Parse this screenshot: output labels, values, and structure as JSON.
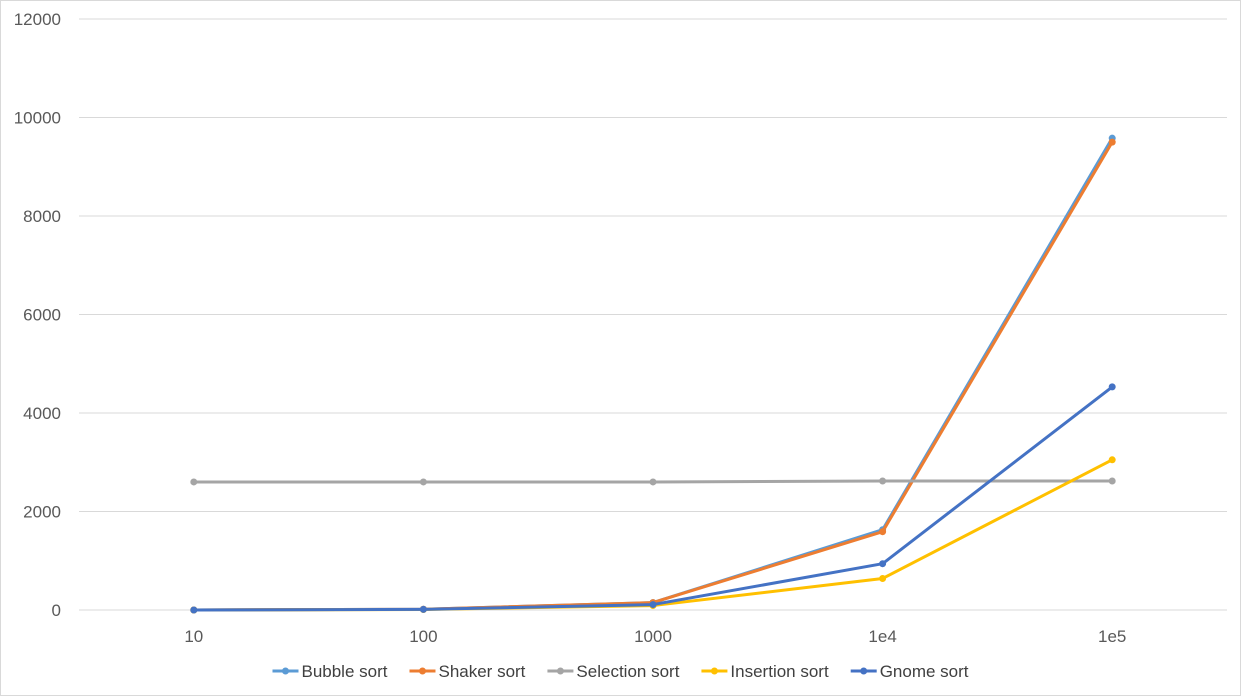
{
  "chart_data": {
    "type": "line",
    "categories": [
      "10",
      "100",
      "1000",
      "1e4",
      "1e5"
    ],
    "ylim": [
      0,
      12000
    ],
    "yticks": [
      0,
      2000,
      4000,
      6000,
      8000,
      10000,
      12000
    ],
    "grid": true,
    "legend_position": "bottom",
    "title": "",
    "xlabel": "",
    "ylabel": "",
    "series": [
      {
        "name": "Bubble sort",
        "color": "#5B9BD5",
        "values": [
          0,
          15,
          150,
          1630,
          9580
        ]
      },
      {
        "name": "Shaker sort",
        "color": "#ED7D31",
        "values": [
          0,
          15,
          150,
          1590,
          9500
        ]
      },
      {
        "name": "Selection sort",
        "color": "#A5A5A5",
        "values": [
          2600,
          2600,
          2600,
          2620,
          2620
        ]
      },
      {
        "name": "Insertion sort",
        "color": "#FFC000",
        "values": [
          0,
          10,
          90,
          640,
          3050
        ]
      },
      {
        "name": "Gnome sort",
        "color": "#4472C4",
        "values": [
          0,
          12,
          110,
          940,
          4530
        ]
      }
    ]
  }
}
